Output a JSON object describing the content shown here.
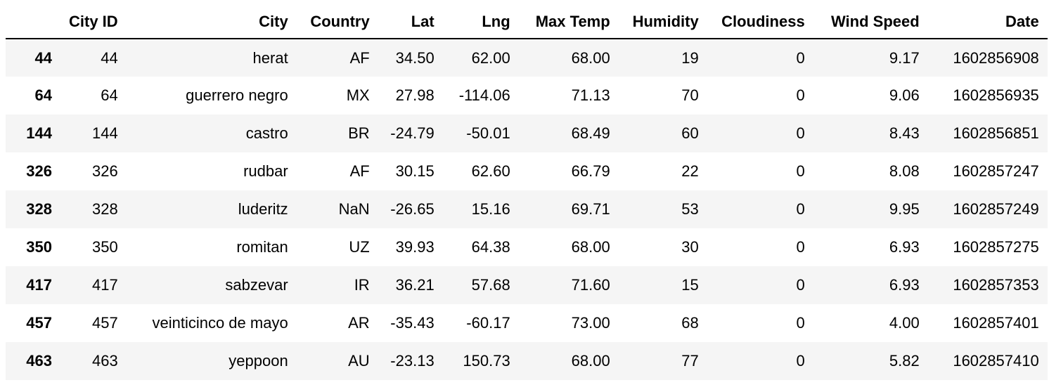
{
  "table": {
    "columns": [
      "",
      "City ID",
      "City",
      "Country",
      "Lat",
      "Lng",
      "Max Temp",
      "Humidity",
      "Cloudiness",
      "Wind Speed",
      "Date"
    ],
    "rows": [
      [
        "44",
        "44",
        "herat",
        "AF",
        "34.50",
        "62.00",
        "68.00",
        "19",
        "0",
        "9.17",
        "1602856908"
      ],
      [
        "64",
        "64",
        "guerrero negro",
        "MX",
        "27.98",
        "-114.06",
        "71.13",
        "70",
        "0",
        "9.06",
        "1602856935"
      ],
      [
        "144",
        "144",
        "castro",
        "BR",
        "-24.79",
        "-50.01",
        "68.49",
        "60",
        "0",
        "8.43",
        "1602856851"
      ],
      [
        "326",
        "326",
        "rudbar",
        "AF",
        "30.15",
        "62.60",
        "66.79",
        "22",
        "0",
        "8.08",
        "1602857247"
      ],
      [
        "328",
        "328",
        "luderitz",
        "NaN",
        "-26.65",
        "15.16",
        "69.71",
        "53",
        "0",
        "9.95",
        "1602857249"
      ],
      [
        "350",
        "350",
        "romitan",
        "UZ",
        "39.93",
        "64.38",
        "68.00",
        "30",
        "0",
        "6.93",
        "1602857275"
      ],
      [
        "417",
        "417",
        "sabzevar",
        "IR",
        "36.21",
        "57.68",
        "71.60",
        "15",
        "0",
        "6.93",
        "1602857353"
      ],
      [
        "457",
        "457",
        "veinticinco de mayo",
        "AR",
        "-35.43",
        "-60.17",
        "73.00",
        "68",
        "0",
        "4.00",
        "1602857401"
      ],
      [
        "463",
        "463",
        "yeppoon",
        "AU",
        "-23.13",
        "150.73",
        "68.00",
        "77",
        "0",
        "5.82",
        "1602857410"
      ]
    ]
  }
}
